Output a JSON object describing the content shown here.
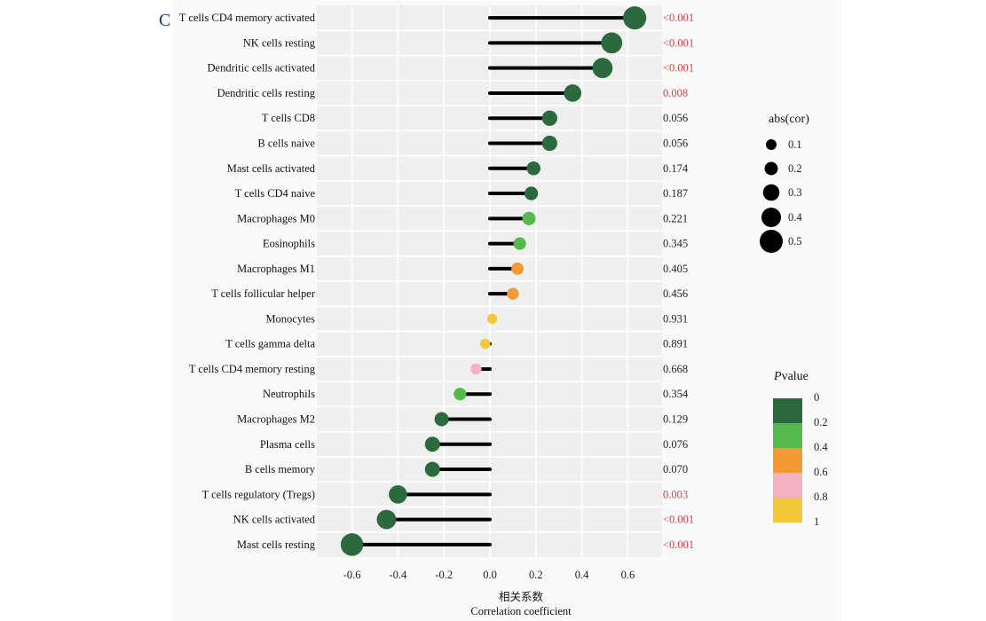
{
  "panel_label": "C",
  "chart_data": {
    "type": "lollipop",
    "title": "",
    "xlabel_cn": "相关系数",
    "xlabel": "Correlation coefficient",
    "ylabel": "",
    "xlim": [
      -0.68,
      0.75
    ],
    "x_ticks": [
      -0.6,
      -0.4,
      -0.2,
      0.0,
      0.2,
      0.4,
      0.6
    ],
    "x_tick_labels": [
      "-0.6",
      "-0.4",
      "-0.2",
      "0.0",
      "0.2",
      "0.4",
      "0.6"
    ],
    "grid": true,
    "significant_color": "#e03a3a",
    "normal_color": "#222222",
    "rows": [
      {
        "label": "T cells CD4 memory activated",
        "cor": 0.63,
        "pvalue": 0.0005,
        "pvalue_text": "<0.001",
        "significant": true
      },
      {
        "label": "NK cells resting",
        "cor": 0.53,
        "pvalue": 0.0005,
        "pvalue_text": "<0.001",
        "significant": true
      },
      {
        "label": "Dendritic cells activated",
        "cor": 0.49,
        "pvalue": 0.0005,
        "pvalue_text": "<0.001",
        "significant": true
      },
      {
        "label": "Dendritic cells resting",
        "cor": 0.36,
        "pvalue": 0.008,
        "pvalue_text": "0.008",
        "significant": true
      },
      {
        "label": "T cells CD8",
        "cor": 0.26,
        "pvalue": 0.056,
        "pvalue_text": "0.056",
        "significant": false
      },
      {
        "label": "B cells naive",
        "cor": 0.26,
        "pvalue": 0.056,
        "pvalue_text": "0.056",
        "significant": false
      },
      {
        "label": "Mast cells activated",
        "cor": 0.19,
        "pvalue": 0.174,
        "pvalue_text": "0.174",
        "significant": false
      },
      {
        "label": "T cells CD4 naive",
        "cor": 0.18,
        "pvalue": 0.187,
        "pvalue_text": "0.187",
        "significant": false
      },
      {
        "label": "Macrophages M0",
        "cor": 0.17,
        "pvalue": 0.221,
        "pvalue_text": "0.221",
        "significant": false
      },
      {
        "label": "Eosinophils",
        "cor": 0.13,
        "pvalue": 0.345,
        "pvalue_text": "0.345",
        "significant": false
      },
      {
        "label": "Macrophages M1",
        "cor": 0.12,
        "pvalue": 0.405,
        "pvalue_text": "0.405",
        "significant": false
      },
      {
        "label": "T cells follicular helper",
        "cor": 0.1,
        "pvalue": 0.456,
        "pvalue_text": "0.456",
        "significant": false
      },
      {
        "label": "Monocytes",
        "cor": 0.01,
        "pvalue": 0.931,
        "pvalue_text": "0.931",
        "significant": false
      },
      {
        "label": "T cells gamma delta",
        "cor": -0.02,
        "pvalue": 0.891,
        "pvalue_text": "0.891",
        "significant": false
      },
      {
        "label": "T cells CD4 memory resting",
        "cor": -0.06,
        "pvalue": 0.668,
        "pvalue_text": "0.668",
        "significant": false
      },
      {
        "label": "Neutrophils",
        "cor": -0.13,
        "pvalue": 0.354,
        "pvalue_text": "0.354",
        "significant": false
      },
      {
        "label": "Macrophages M2",
        "cor": -0.21,
        "pvalue": 0.129,
        "pvalue_text": "0.129",
        "significant": false
      },
      {
        "label": "Plasma cells",
        "cor": -0.25,
        "pvalue": 0.076,
        "pvalue_text": "0.076",
        "significant": false
      },
      {
        "label": "B cells memory",
        "cor": -0.25,
        "pvalue": 0.07,
        "pvalue_text": "0.070",
        "significant": false
      },
      {
        "label": "T cells regulatory (Tregs)",
        "cor": -0.4,
        "pvalue": 0.003,
        "pvalue_text": "0.003",
        "significant": true
      },
      {
        "label": "NK cells activated",
        "cor": -0.45,
        "pvalue": 0.0005,
        "pvalue_text": "<0.001",
        "significant": true
      },
      {
        "label": "Mast cells resting",
        "cor": -0.6,
        "pvalue": 0.0005,
        "pvalue_text": "<0.001",
        "significant": true
      }
    ],
    "size_legend": {
      "title": "abs(cor)",
      "values": [
        0.1,
        0.2,
        0.3,
        0.4,
        0.5
      ],
      "labels": [
        "0.1",
        "0.2",
        "0.3",
        "0.4",
        "0.5"
      ]
    },
    "color_legend": {
      "title_italic": "P",
      "title_rest": "value",
      "breaks": [
        "0",
        "0.2",
        "0.4",
        "0.6",
        "0.8",
        "1"
      ],
      "bins": [
        {
          "from": 0.0,
          "to": 0.2,
          "color": "#2c6a3d"
        },
        {
          "from": 0.2,
          "to": 0.4,
          "color": "#55b94e"
        },
        {
          "from": 0.4,
          "to": 0.6,
          "color": "#f39a34"
        },
        {
          "from": 0.6,
          "to": 0.8,
          "color": "#f4b2c4"
        },
        {
          "from": 0.8,
          "to": 1.0,
          "color": "#f0c83a"
        }
      ]
    }
  }
}
